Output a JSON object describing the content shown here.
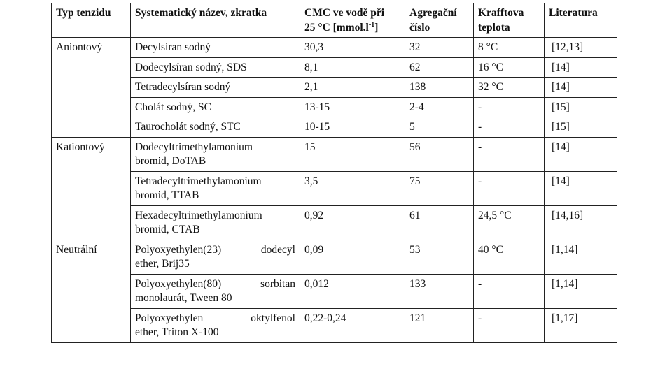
{
  "headers": {
    "type": "Typ tenzidu",
    "name": "Systematický název, zkratka",
    "cmc_line1": "CMC ve vodě při",
    "cmc_line2_pre": "25 °C [mmol.l",
    "cmc_sup": "-1",
    "cmc_line2_post": "]",
    "agg_line1": "Agregační",
    "agg_line2": "číslo",
    "krafft_line1": "Krafftova",
    "krafft_line2": "teplota",
    "lit": "Literatura"
  },
  "groups": [
    {
      "type": "Aniontový",
      "rows": [
        {
          "name": [
            "Decylsíran sodný"
          ],
          "cmc": "30,3",
          "agg": "32",
          "krafft": "8 °C",
          "lit": "[12,13]"
        },
        {
          "name": [
            "Dodecylsíran sodný, SDS"
          ],
          "cmc": "8,1",
          "agg": "62",
          "krafft": "16 °C",
          "lit": "[14]"
        },
        {
          "name": [
            "Tetradecylsíran sodný"
          ],
          "cmc": "2,1",
          "agg": "138",
          "krafft": "32 °C",
          "lit": "[14]"
        },
        {
          "name": [
            "Cholát sodný, SC"
          ],
          "cmc": "13-15",
          "agg": "2-4",
          "krafft": "-",
          "lit": "[15]"
        },
        {
          "name": [
            "Taurocholát sodný, STC"
          ],
          "cmc": "10-15",
          "agg": "5",
          "krafft": "-",
          "lit": "[15]"
        }
      ]
    },
    {
      "type": "Kationtový",
      "rows": [
        {
          "name": [
            "Dodecyltrimethylamonium",
            "bromid, DoTAB"
          ],
          "cmc": "15",
          "agg": "56",
          "krafft": "-",
          "lit": "[14]"
        },
        {
          "name": [
            "Tetradecyltrimethylamonium",
            "bromid, TTAB"
          ],
          "cmc": "3,5",
          "agg": "75",
          "krafft": "-",
          "lit": "[14]"
        },
        {
          "name": [
            "Hexadecyltrimethylamonium",
            "bromid, CTAB"
          ],
          "cmc": "0,92",
          "agg": "61",
          "krafft": "24,5 °C",
          "lit": "[14,16]"
        }
      ]
    },
    {
      "type": "Neutrální",
      "rows": [
        {
          "name": [
            "Polyoxyethylen(23) dodecyl",
            "ether, Brij35"
          ],
          "cmc": "0,09",
          "agg": "53",
          "krafft": "40 °C",
          "lit": "[1,14]"
        },
        {
          "name": [
            "Polyoxyethylen(80) sorbitan",
            "monolaurát, Tween 80"
          ],
          "cmc": "0,012",
          "agg": "133",
          "krafft": "-",
          "lit": "[1,14]"
        },
        {
          "name": [
            "Polyoxyethylen oktylfenol",
            "ether, Triton X-100"
          ],
          "cmc": "0,22-0,24",
          "agg": "121",
          "krafft": "-",
          "lit": "[1,17]"
        }
      ]
    }
  ]
}
